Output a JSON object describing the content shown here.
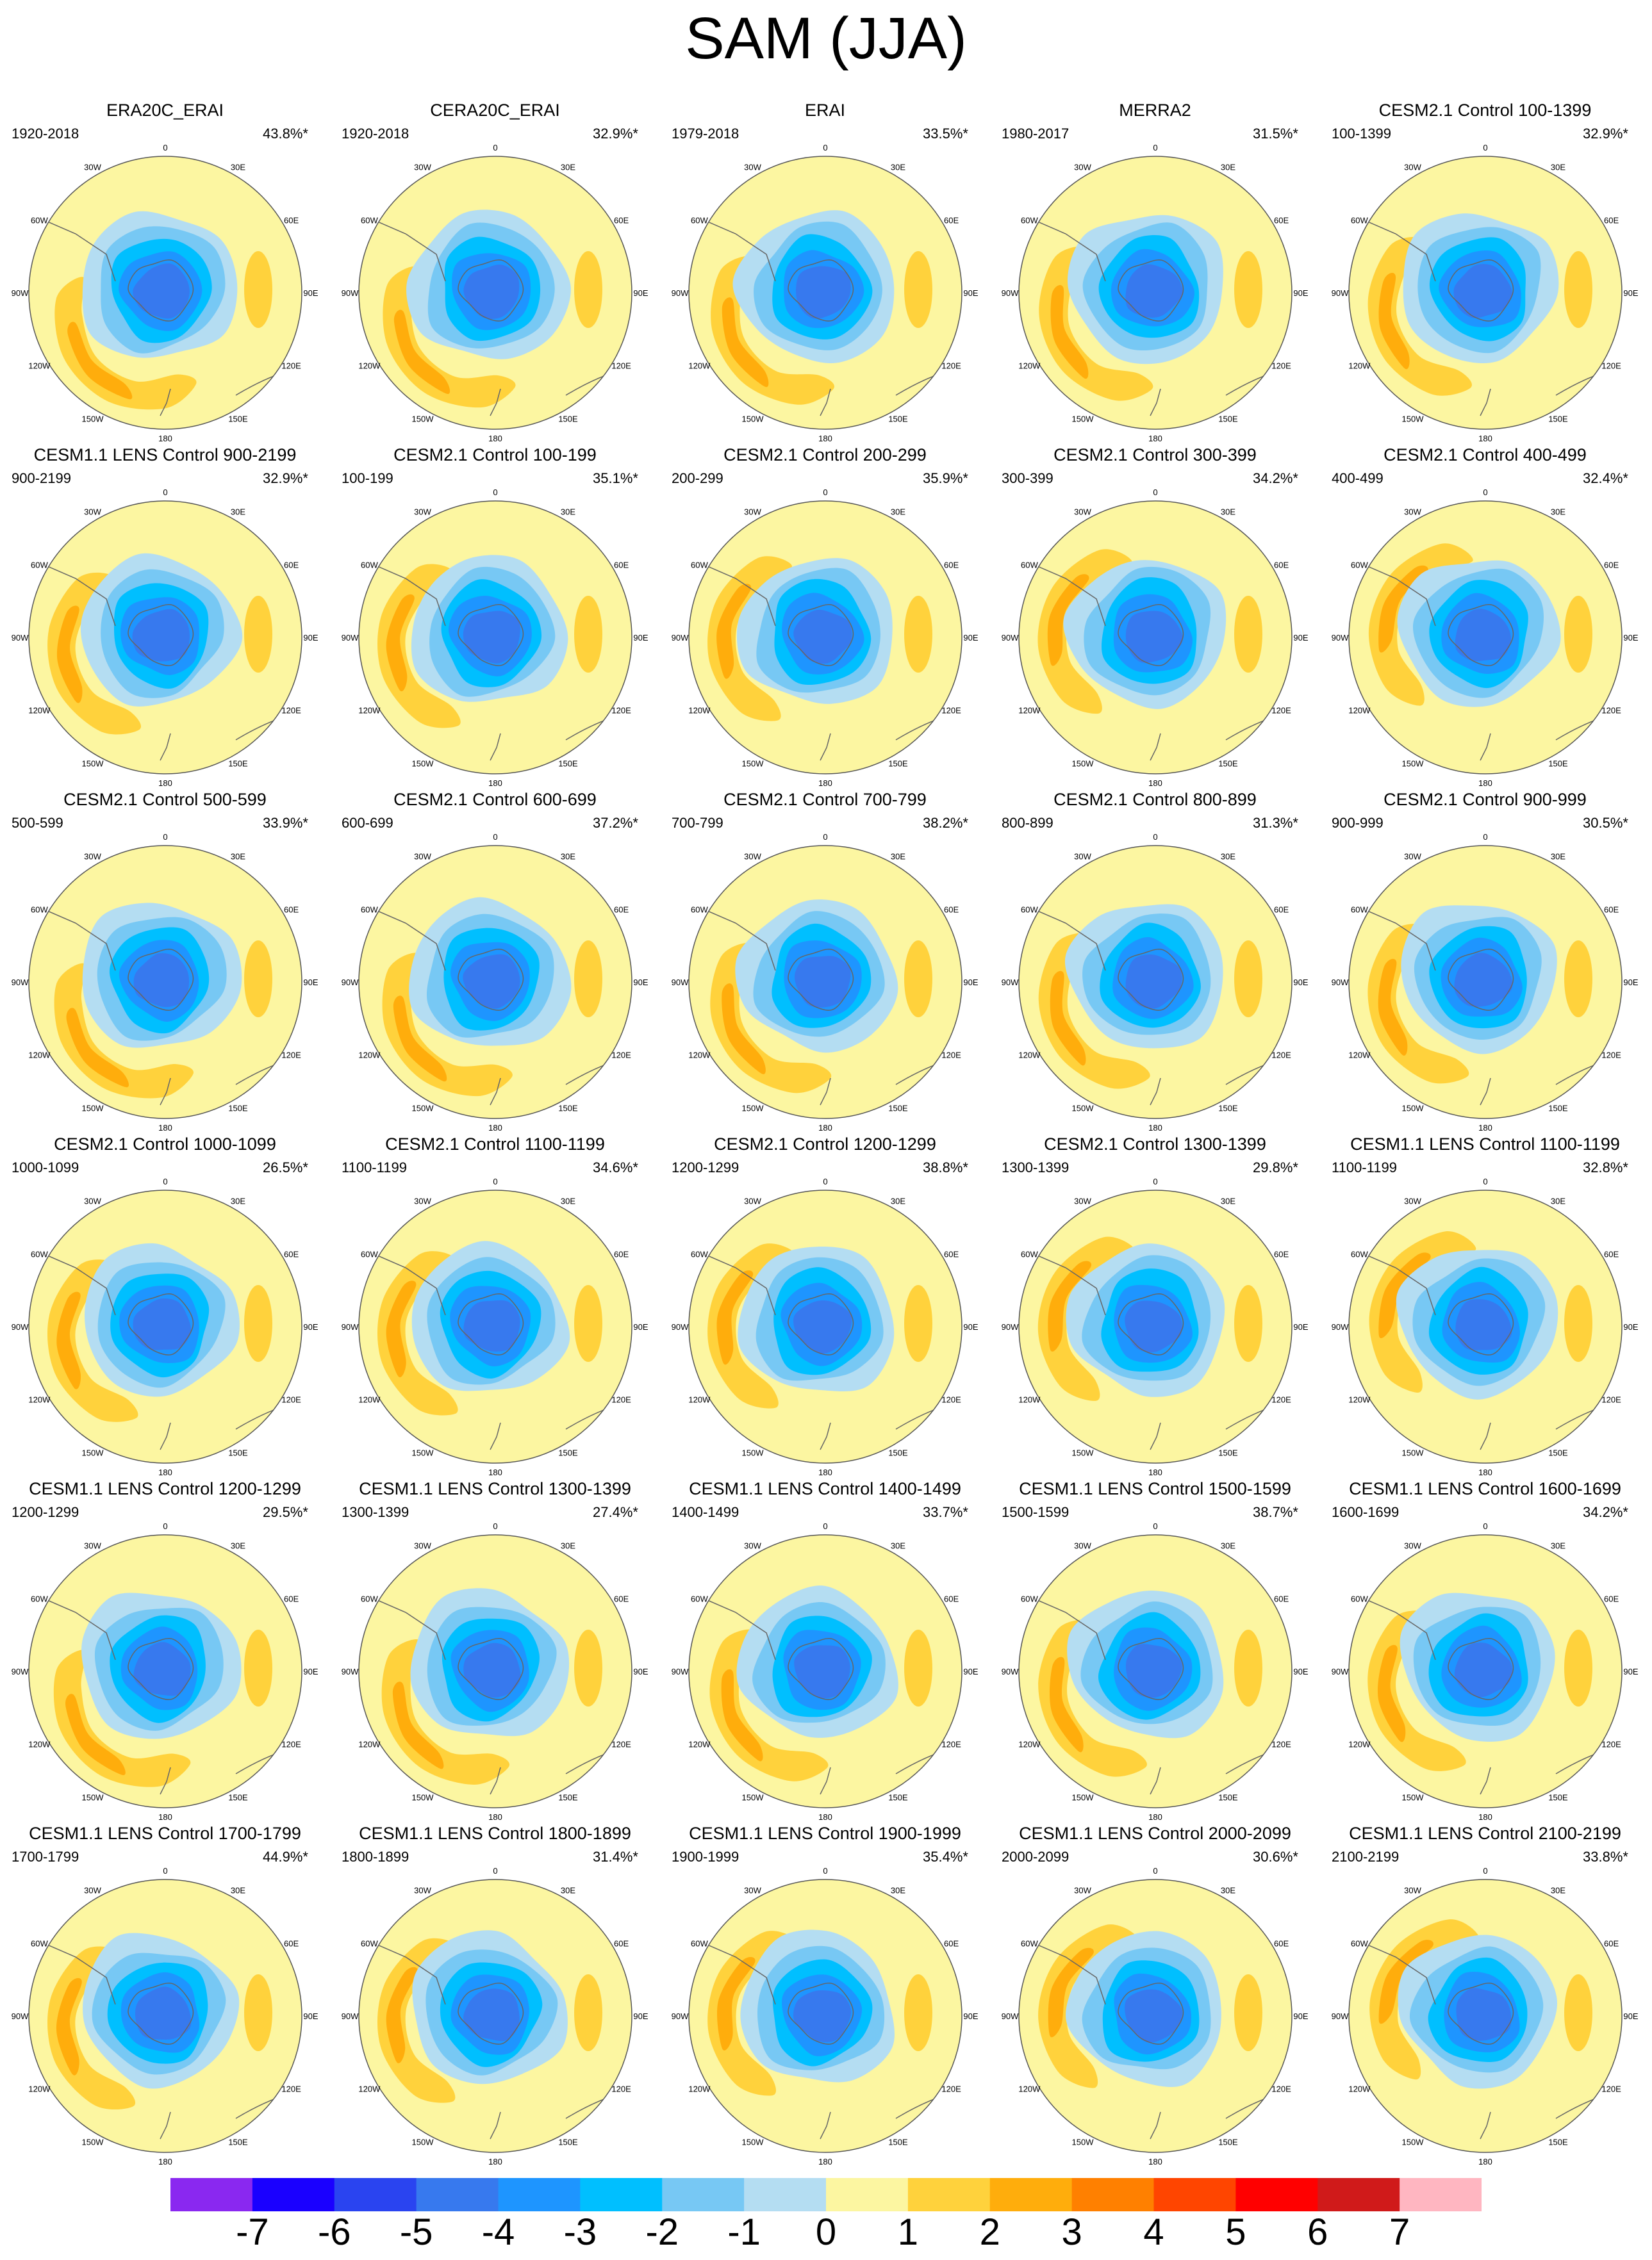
{
  "figure": {
    "title": "SAM (JJA)",
    "panels": [
      {
        "title": "ERA20C_ERAI",
        "period": "1920-2018",
        "variance": "43.8%*"
      },
      {
        "title": "CERA20C_ERAI",
        "period": "1920-2018",
        "variance": "32.9%*"
      },
      {
        "title": "ERAI",
        "period": "1979-2018",
        "variance": "33.5%*"
      },
      {
        "title": "MERRA2",
        "period": "1980-2017",
        "variance": "31.5%*"
      },
      {
        "title": "CESM2.1 Control 100-1399",
        "period": "100-1399",
        "variance": "32.9%*"
      },
      {
        "title": "CESM1.1 LENS Control 900-2199",
        "period": "900-2199",
        "variance": "32.9%*"
      },
      {
        "title": "CESM2.1 Control 100-199",
        "period": "100-199",
        "variance": "35.1%*"
      },
      {
        "title": "CESM2.1 Control 200-299",
        "period": "200-299",
        "variance": "35.9%*"
      },
      {
        "title": "CESM2.1 Control 300-399",
        "period": "300-399",
        "variance": "34.2%*"
      },
      {
        "title": "CESM2.1 Control 400-499",
        "period": "400-499",
        "variance": "32.4%*"
      },
      {
        "title": "CESM2.1 Control 500-599",
        "period": "500-599",
        "variance": "33.9%*"
      },
      {
        "title": "CESM2.1 Control 600-699",
        "period": "600-699",
        "variance": "37.2%*"
      },
      {
        "title": "CESM2.1 Control 700-799",
        "period": "700-799",
        "variance": "38.2%*"
      },
      {
        "title": "CESM2.1 Control 800-899",
        "period": "800-899",
        "variance": "31.3%*"
      },
      {
        "title": "CESM2.1 Control 900-999",
        "period": "900-999",
        "variance": "30.5%*"
      },
      {
        "title": "CESM2.1 Control 1000-1099",
        "period": "1000-1099",
        "variance": "26.5%*"
      },
      {
        "title": "CESM2.1 Control 1100-1199",
        "period": "1100-1199",
        "variance": "34.6%*"
      },
      {
        "title": "CESM2.1 Control 1200-1299",
        "period": "1200-1299",
        "variance": "38.8%*"
      },
      {
        "title": "CESM2.1 Control 1300-1399",
        "period": "1300-1399",
        "variance": "29.8%*"
      },
      {
        "title": "CESM1.1 LENS Control 1100-1199",
        "period": "1100-1199",
        "variance": "32.8%*"
      },
      {
        "title": "CESM1.1 LENS Control 1200-1299",
        "period": "1200-1299",
        "variance": "29.5%*"
      },
      {
        "title": "CESM1.1 LENS Control 1300-1399",
        "period": "1300-1399",
        "variance": "27.4%*"
      },
      {
        "title": "CESM1.1 LENS Control 1400-1499",
        "period": "1400-1499",
        "variance": "33.7%*"
      },
      {
        "title": "CESM1.1 LENS Control 1500-1599",
        "period": "1500-1599",
        "variance": "38.7%*"
      },
      {
        "title": "CESM1.1 LENS Control 1600-1699",
        "period": "1600-1699",
        "variance": "34.2%*"
      },
      {
        "title": "CESM1.1 LENS Control 1700-1799",
        "period": "1700-1799",
        "variance": "44.9%*"
      },
      {
        "title": "CESM1.1 LENS Control 1800-1899",
        "period": "1800-1899",
        "variance": "31.4%*"
      },
      {
        "title": "CESM1.1 LENS Control 1900-1999",
        "period": "1900-1999",
        "variance": "35.4%*"
      },
      {
        "title": "CESM1.1 LENS Control 2000-2099",
        "period": "2000-2099",
        "variance": "30.6%*"
      },
      {
        "title": "CESM1.1 LENS Control 2100-2199",
        "period": "2100-2199",
        "variance": "33.8%*"
      }
    ],
    "longitude_labels": [
      "0",
      "30E",
      "60E",
      "90E",
      "120E",
      "150E",
      "180",
      "150W",
      "120W",
      "90W",
      "60W",
      "30W"
    ]
  },
  "chart_data": {
    "type": "heatmap",
    "projection": "south polar stereographic",
    "grid": false,
    "colorbar": {
      "placement": "bottom",
      "tick_labels": [
        "-7",
        "-6",
        "-5",
        "-4",
        "-3",
        "-2",
        "-1",
        "0",
        "1",
        "2",
        "3",
        "4",
        "5",
        "6",
        "7"
      ],
      "levels": [
        -7,
        -6,
        -5,
        -4,
        -3,
        -2,
        -1,
        0,
        1,
        2,
        3,
        4,
        5,
        6,
        7
      ],
      "colors": [
        "#8a28f0",
        "#1a00ff",
        "#2a44f0",
        "#3779ee",
        "#1e95ff",
        "#00bfff",
        "#77c8f4",
        "#b4ddf2",
        "#fcf6a1",
        "#ffd23c",
        "#ffad0c",
        "#ff8000",
        "#ff4500",
        "#ff0000",
        "#d01a1a",
        "#ffb6c1"
      ]
    }
  }
}
